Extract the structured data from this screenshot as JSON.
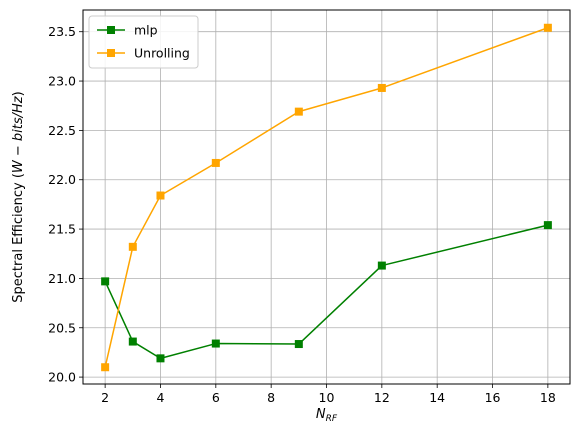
{
  "chart_data": {
    "type": "line",
    "x": [
      2,
      3,
      4,
      6,
      9,
      12,
      18
    ],
    "series": [
      {
        "name": "mlp",
        "color": "#008000",
        "marker": "square",
        "values": [
          20.97,
          20.36,
          20.19,
          20.34,
          20.335,
          21.13,
          21.54
        ]
      },
      {
        "name": "Unrolling",
        "color": "#ffa500",
        "marker": "square",
        "values": [
          20.1,
          21.32,
          21.84,
          22.17,
          22.69,
          22.93,
          23.54
        ]
      }
    ],
    "xticks": [
      2,
      4,
      6,
      8,
      10,
      12,
      14,
      16,
      18
    ],
    "yticks": [
      20.0,
      20.5,
      21.0,
      21.5,
      22.0,
      22.5,
      23.0,
      23.5
    ],
    "xtick_labels": [
      "2",
      "4",
      "6",
      "8",
      "10",
      "12",
      "14",
      "16",
      "18"
    ],
    "ytick_labels": [
      "20.0",
      "20.5",
      "21.0",
      "21.5",
      "22.0",
      "22.5",
      "23.0",
      "23.5"
    ],
    "xlim": [
      1.2,
      18.8
    ],
    "ylim": [
      19.93,
      23.72
    ],
    "xlabel_main": "N",
    "xlabel_sub": "RF",
    "ylabel_prefix": "Spectral Efficiency (",
    "ylabel_math": "W − bits/Hz",
    "ylabel_suffix": ")",
    "grid": true,
    "legend_position": "top-left"
  }
}
